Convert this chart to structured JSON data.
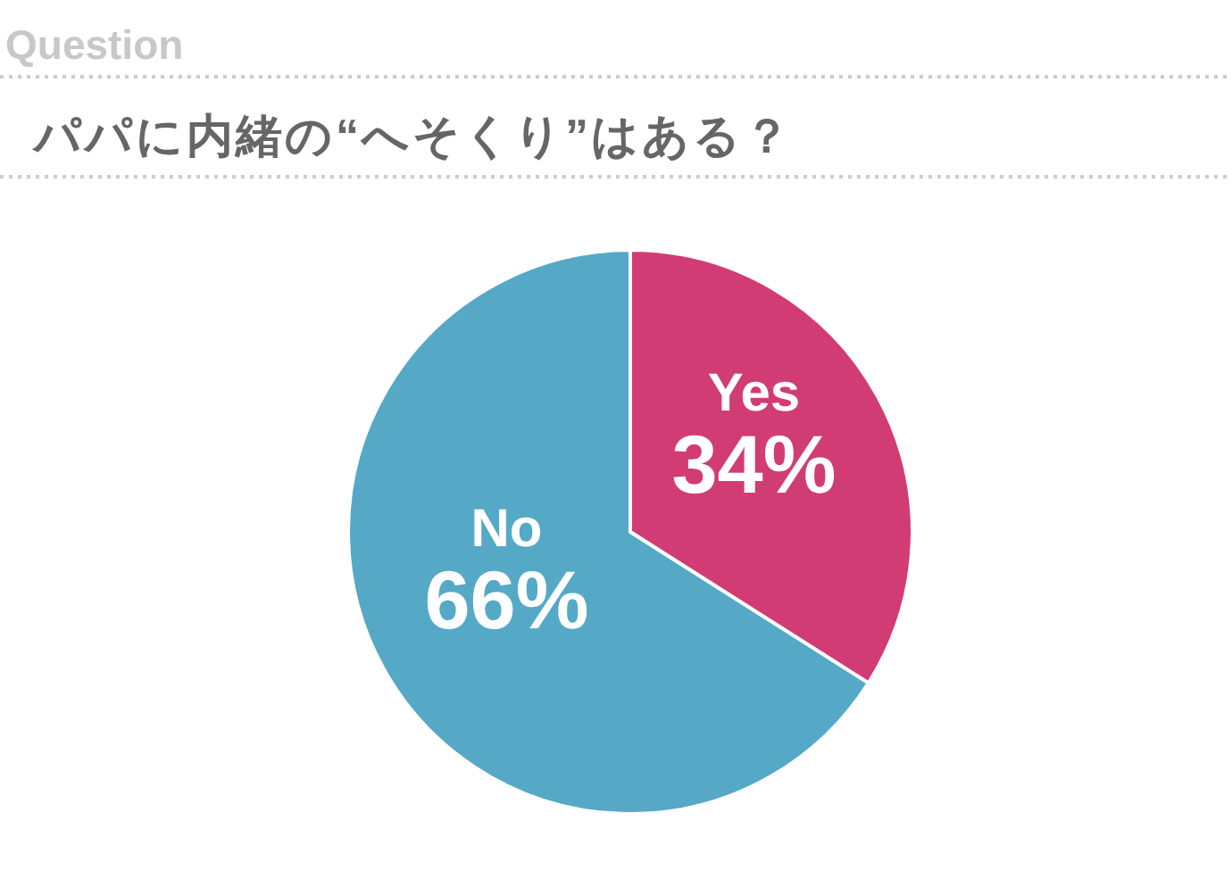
{
  "chart_data": {
    "type": "pie",
    "title": "Question",
    "subtitle": "パパに内緒の“へそくり”はある？",
    "categories": [
      "Yes",
      "No"
    ],
    "values": [
      34,
      66
    ],
    "value_labels": [
      "34%",
      "66%"
    ],
    "colors": [
      "#d13c74",
      "#55a9c7"
    ]
  }
}
